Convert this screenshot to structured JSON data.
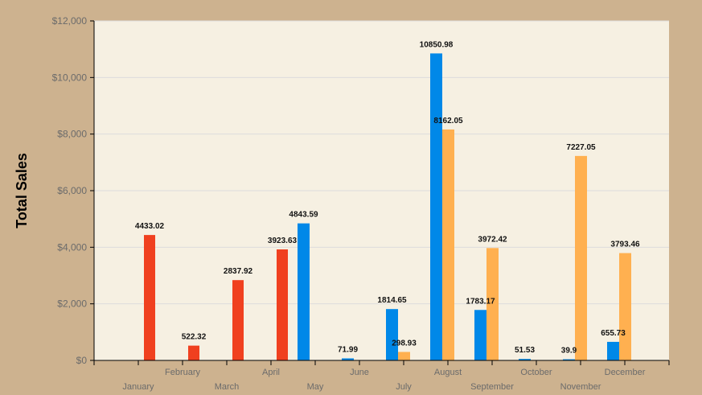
{
  "chart_data": {
    "type": "bar",
    "title": "",
    "xlabel": "",
    "ylabel": "Total Sales",
    "ylim": [
      0,
      12000
    ],
    "yticks": [
      "$0",
      "$2,000",
      "$4,000",
      "$6,000",
      "$8,000",
      "$10,000",
      "$12,000"
    ],
    "grid": "horizontal",
    "legend": "none",
    "categories": [
      "January",
      "February",
      "March",
      "April",
      "May",
      "June",
      "July",
      "August",
      "September",
      "October",
      "November",
      "December"
    ],
    "series": [
      {
        "color": "#f0401f",
        "values": [
          4433.02,
          522.32,
          2837.92,
          3923.63,
          null,
          null,
          null,
          null,
          null,
          null,
          null,
          null
        ]
      },
      {
        "color": "#0088e8",
        "values": [
          null,
          null,
          null,
          null,
          4843.59,
          71.99,
          1814.65,
          10850.98,
          1783.17,
          51.53,
          39.9,
          655.73
        ]
      },
      {
        "color": "#ffb050",
        "values": [
          null,
          null,
          null,
          null,
          null,
          null,
          298.93,
          8162.05,
          3972.42,
          null,
          7227.05,
          3793.46
        ]
      }
    ],
    "data_labels": {
      "0": [
        "4433.02",
        "522.32",
        "2837.92",
        "3923.63",
        null,
        null,
        null,
        null,
        null,
        null,
        null,
        null
      ],
      "1": [
        null,
        null,
        null,
        null,
        "4843.59",
        "71.99",
        "1814.65",
        "10850.98",
        "1783.17",
        "51.53",
        "39.9",
        "655.73"
      ],
      "2": [
        null,
        null,
        null,
        null,
        null,
        null,
        "298.93",
        "8162.05",
        "3972.42",
        null,
        "7227.05",
        "3793.46"
      ]
    }
  },
  "colors": {
    "background": "#cdb28f",
    "plot_background": "#f6f0e2",
    "gridline": "#dcdcdc"
  }
}
